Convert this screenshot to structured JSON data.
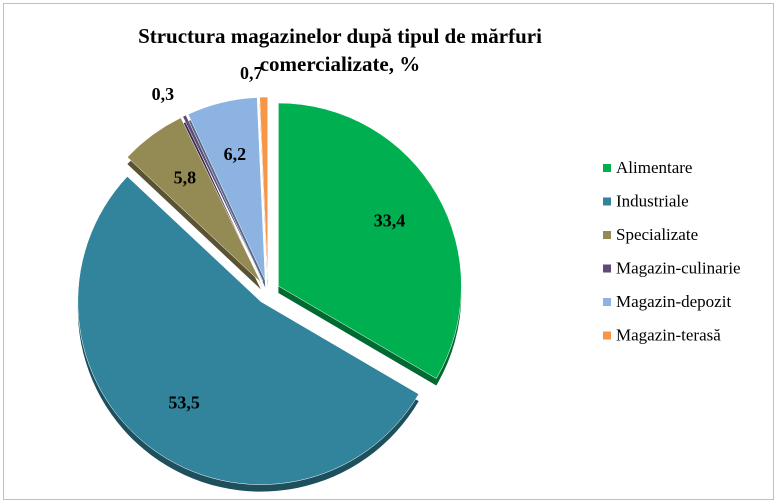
{
  "chart_data": {
    "type": "pie",
    "title": "Structura magazinelor după tipul de mărfuri comercializate, %",
    "categories": [
      "Alimentare",
      "Industriale",
      "Specializate",
      "Magazin-culinarie",
      "Magazin-depozit",
      "Magazin-terasă"
    ],
    "values": [
      33.4,
      53.5,
      5.8,
      0.3,
      6.2,
      0.7
    ],
    "value_labels": [
      "33,4",
      "53,5",
      "5,8",
      "0,3",
      "6,2",
      "0,7"
    ],
    "colors": [
      "#00b050",
      "#31849b",
      "#948a54",
      "#604a7b",
      "#8db3e2",
      "#f79646"
    ],
    "legend": "right"
  }
}
